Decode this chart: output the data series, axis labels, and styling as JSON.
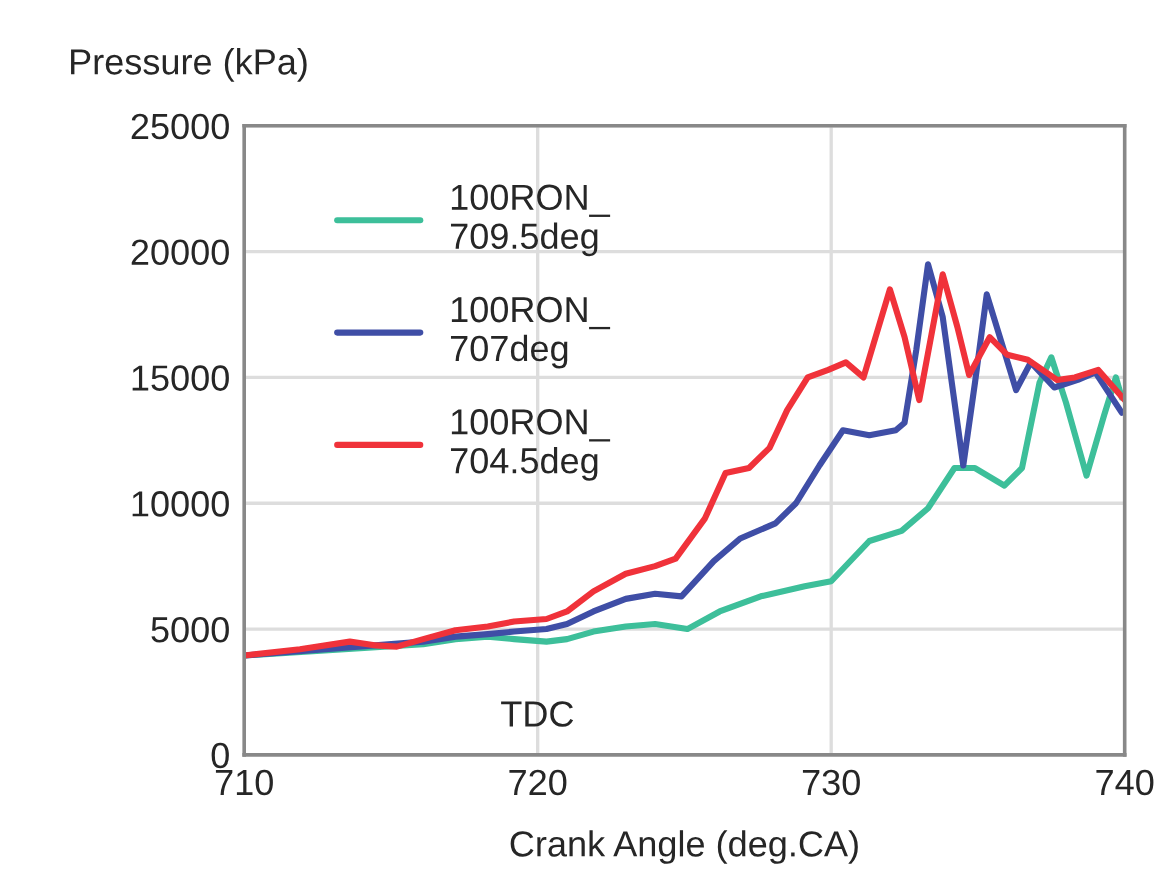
{
  "chart_data": {
    "type": "line",
    "xlabel": "Crank Angle (deg.CA)",
    "ylabel": "Pressure (kPa)",
    "xlim": [
      710,
      740
    ],
    "xticks": [
      710,
      720,
      730,
      740
    ],
    "ylim": [
      0,
      25000
    ],
    "yticks": [
      0,
      5000,
      10000,
      15000,
      20000,
      25000
    ],
    "grid": true,
    "legend": "top left",
    "marker": "none",
    "line_style": "solid",
    "annotations": [
      "TDC"
    ],
    "series": [
      {
        "name": "100RON_\n709.5deg",
        "color": "#3dbf9a",
        "x": [
          710,
          716.1,
          717.2,
          718.3,
          719.2,
          720.3,
          721.0,
          721.9,
          723.0,
          724.0,
          725.1,
          726.2,
          727.6,
          729.1,
          730.0,
          731.3,
          732.4,
          733.3,
          734.2,
          734.9,
          735.9,
          736.5,
          737.1,
          737.5,
          738.0,
          738.7,
          739.3,
          739.7,
          739.9
        ],
        "values": [
          3950,
          4400,
          4600,
          4700,
          4600,
          4500,
          4600,
          4900,
          5100,
          5200,
          5000,
          5700,
          6300,
          6700,
          6900,
          8500,
          8900,
          9800,
          11400,
          11400,
          10700,
          11400,
          14800,
          15800,
          14000,
          11100,
          13500,
          15000,
          14200
        ]
      },
      {
        "name": "100RON_\n707deg",
        "color": "#3f4ea6",
        "x": [
          710,
          716.1,
          717.2,
          718.3,
          719.2,
          720.3,
          721.0,
          721.9,
          723.0,
          724.0,
          724.9,
          726.0,
          726.9,
          728.1,
          728.8,
          729.6,
          730.4,
          731.3,
          732.2,
          732.5,
          732.9,
          733.3,
          733.8,
          734.5,
          734.9,
          735.3,
          735.8,
          736.3,
          736.8,
          737.6,
          738.4,
          739.0,
          739.9
        ],
        "values": [
          3950,
          4500,
          4700,
          4800,
          4900,
          5000,
          5200,
          5700,
          6200,
          6400,
          6300,
          7700,
          8600,
          9200,
          10000,
          11500,
          12900,
          12700,
          12900,
          13200,
          16100,
          19500,
          17400,
          11500,
          14800,
          18300,
          16400,
          14500,
          15600,
          14600,
          14900,
          15200,
          13600
        ]
      },
      {
        "name": "100RON_\n704.5deg",
        "color": "#f0323a",
        "x": [
          710,
          711.9,
          713.6,
          714.5,
          715.2,
          716.1,
          717.2,
          718.3,
          719.2,
          720.3,
          721.0,
          721.9,
          723.0,
          724.0,
          724.7,
          725.7,
          726.4,
          727.2,
          727.9,
          728.5,
          729.2,
          729.9,
          730.5,
          731.1,
          732.0,
          732.5,
          733.0,
          733.8,
          734.3,
          734.7,
          735.4,
          736.0,
          736.7,
          737.7,
          738.3,
          739.1,
          740.0
        ],
        "values": [
          3950,
          4200,
          4500,
          4350,
          4300,
          4600,
          4950,
          5100,
          5300,
          5400,
          5700,
          6500,
          7200,
          7500,
          7800,
          9400,
          11200,
          11400,
          12200,
          13700,
          15000,
          15300,
          15600,
          15000,
          18500,
          16600,
          14100,
          19100,
          17000,
          15100,
          16600,
          15900,
          15700,
          14900,
          15000,
          15300,
          14100
        ]
      }
    ]
  }
}
